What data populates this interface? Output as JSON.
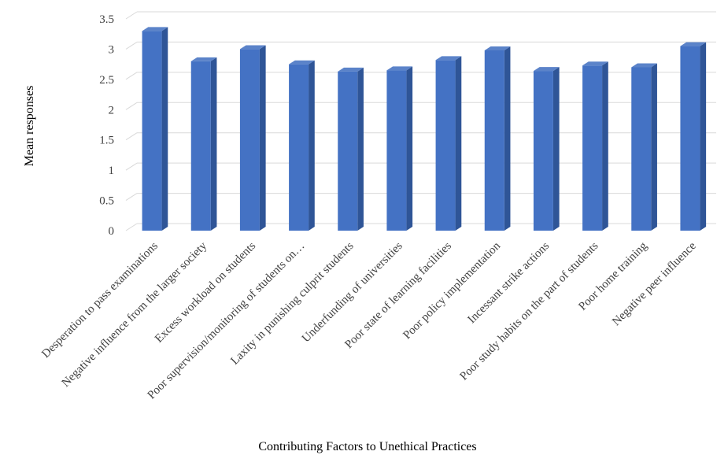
{
  "chart_data": {
    "type": "bar",
    "style": "3d-column",
    "title": "",
    "xlabel": "Contributing Factors to Unethical Practices",
    "ylabel": "Mean responses",
    "ylim": [
      0,
      3.5
    ],
    "yticks": [
      "0",
      "0.5",
      "1",
      "1.5",
      "2",
      "2.5",
      "3",
      "3.5"
    ],
    "grid": true,
    "legend": "none",
    "colors": {
      "bar_front": "#4472C4",
      "bar_side": "#2F5597",
      "bar_top": "#5B83C9",
      "grid": "#D9D9D9"
    },
    "categories": [
      "Desperation to pass examinations",
      "Negative influence from the larger society",
      "Excess workload on students",
      "Poor supervision/monitoring of students on…",
      "Laxity in punishing culprit students",
      "Underfunding of universities",
      "Poor state of learning facilities",
      "Poor policy implementation",
      "Incessant strike actions",
      "Poor study habits on the part of students",
      "Poor home training",
      "Negative peer influence"
    ],
    "values": [
      3.3,
      2.8,
      3.0,
      2.75,
      2.63,
      2.65,
      2.82,
      2.98,
      2.64,
      2.73,
      2.7,
      3.05
    ]
  }
}
